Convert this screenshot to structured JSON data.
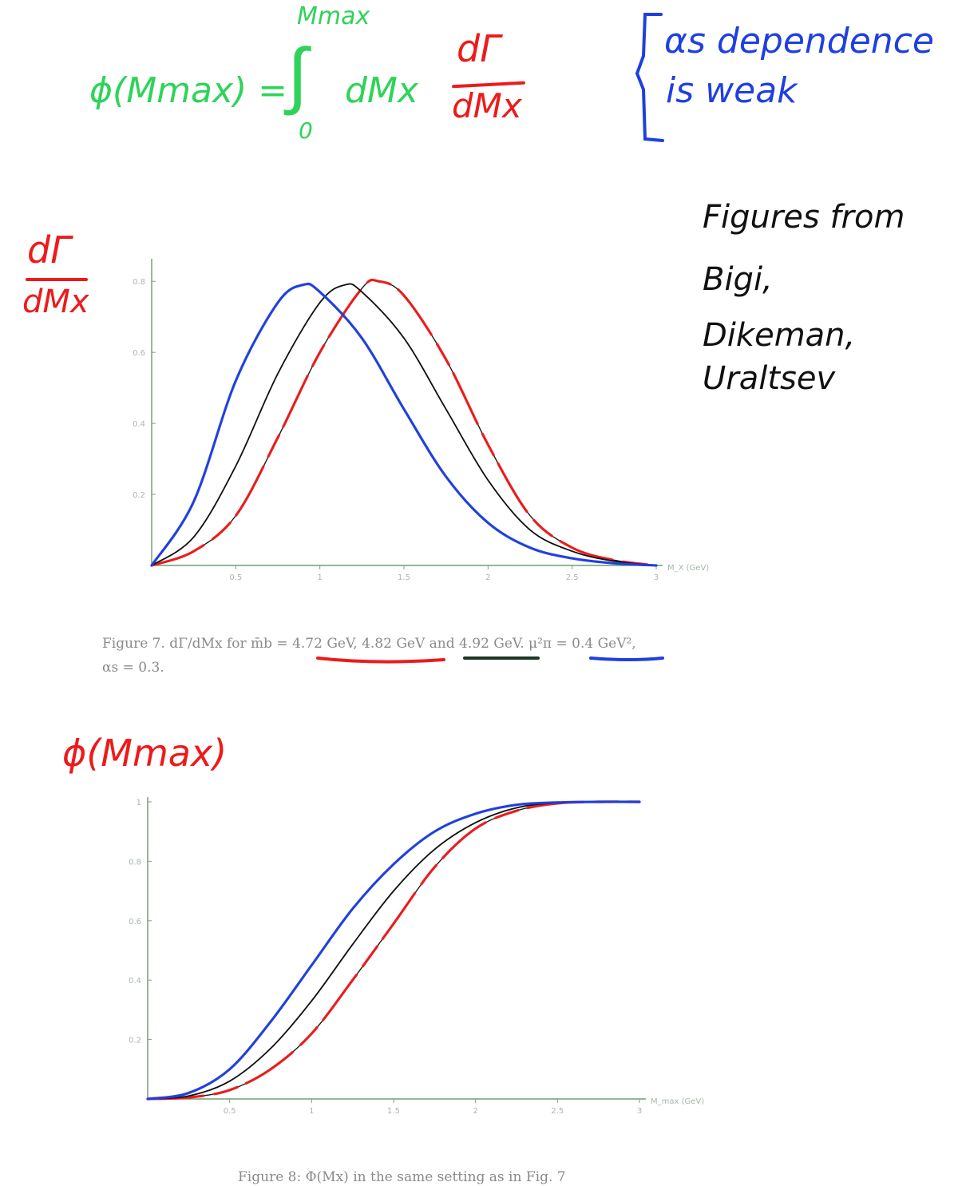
{
  "annotations": {
    "formula_lhs": "ϕ(Mmax) =",
    "formula_upper": "Mmax",
    "formula_integral": "∫",
    "formula_lower": "0",
    "formula_dmx": "dMx",
    "fraction_numerator": "dΓ",
    "fraction_denominator": "dMx",
    "alpha_note_line1": "αs dependence",
    "alpha_note_line2": "is weak",
    "fig1_ylabel_num": "dΓ",
    "fig1_ylabel_den": "dMx",
    "source_line1": "Figures from",
    "source_line2": "Bigi,",
    "source_line3": "Dikeman,",
    "source_line4": "Uraltsev",
    "fig2_ylabel": "ϕ(Mmax)",
    "colors": {
      "green": "#2fd35a",
      "red": "#ee1a1a",
      "blue": "#1f3fe0",
      "black": "#111111"
    }
  },
  "captions": {
    "fig7_line1": "Figure 7.   dΓ/dMx for m̄b = 4.72 GeV, 4.82 GeV and 4.92 GeV. μ²π = 0.4 GeV²,",
    "fig7_line2": "αs = 0.3.",
    "fig8": "Figure 8:  Φ(Mx) in the same setting as in Fig. 7"
  },
  "chart_data": [
    {
      "type": "line",
      "title": "",
      "xlabel": "M_X (GeV)",
      "ylabel": "dΓ/dMx",
      "xlim": [
        0,
        3
      ],
      "ylim": [
        0,
        0.85
      ],
      "x_ticks": [
        "0.5",
        "1",
        "1.5",
        "2",
        "2.5",
        "3"
      ],
      "y_ticks": [
        "0.2",
        "0.4",
        "0.6",
        "0.8"
      ],
      "grid": false,
      "series": [
        {
          "name": "4.72 GeV",
          "color": "#ee1a1a",
          "x": [
            0,
            0.25,
            0.5,
            0.75,
            1.0,
            1.25,
            1.35,
            1.5,
            1.75,
            2.0,
            2.25,
            2.5,
            2.75,
            3.0
          ],
          "values": [
            0,
            0.04,
            0.14,
            0.36,
            0.6,
            0.78,
            0.8,
            0.76,
            0.58,
            0.34,
            0.14,
            0.05,
            0.015,
            0.0
          ]
        },
        {
          "name": "4.82 GeV",
          "color": "#111111",
          "x": [
            0,
            0.25,
            0.5,
            0.75,
            1.0,
            1.15,
            1.25,
            1.5,
            1.75,
            2.0,
            2.25,
            2.5,
            2.75,
            3.0
          ],
          "values": [
            0,
            0.08,
            0.28,
            0.54,
            0.74,
            0.79,
            0.77,
            0.64,
            0.44,
            0.24,
            0.1,
            0.04,
            0.012,
            0.0
          ]
        },
        {
          "name": "4.92 GeV",
          "color": "#1f3fe0",
          "x": [
            0,
            0.25,
            0.5,
            0.75,
            0.9,
            1.0,
            1.25,
            1.5,
            1.75,
            2.0,
            2.25,
            2.5,
            2.75,
            3.0
          ],
          "values": [
            0,
            0.18,
            0.52,
            0.74,
            0.79,
            0.77,
            0.64,
            0.44,
            0.25,
            0.12,
            0.05,
            0.02,
            0.006,
            0.0
          ]
        }
      ]
    },
    {
      "type": "line",
      "title": "",
      "xlabel": "M_max (GeV)",
      "ylabel": "ϕ(Mmax)",
      "xlim": [
        0,
        3
      ],
      "ylim": [
        0,
        1.0
      ],
      "x_ticks": [
        "0.5",
        "1",
        "1.5",
        "2",
        "2.5",
        "3"
      ],
      "y_ticks": [
        "0.2",
        "0.4",
        "0.6",
        "0.8",
        "1"
      ],
      "grid": false,
      "series": [
        {
          "name": "4.72 GeV",
          "color": "#ee1a1a",
          "x": [
            0,
            0.25,
            0.5,
            0.75,
            1.0,
            1.25,
            1.5,
            1.75,
            2.0,
            2.25,
            2.5,
            2.75,
            3.0
          ],
          "values": [
            0,
            0.005,
            0.03,
            0.1,
            0.22,
            0.4,
            0.59,
            0.78,
            0.91,
            0.97,
            0.995,
            1.0,
            1.0
          ]
        },
        {
          "name": "4.82 GeV",
          "color": "#111111",
          "x": [
            0,
            0.25,
            0.5,
            0.75,
            1.0,
            1.25,
            1.5,
            1.75,
            2.0,
            2.25,
            2.5,
            2.75,
            3.0
          ],
          "values": [
            0,
            0.01,
            0.06,
            0.17,
            0.33,
            0.52,
            0.7,
            0.84,
            0.93,
            0.98,
            0.997,
            1.0,
            1.0
          ]
        },
        {
          "name": "4.92 GeV",
          "color": "#1f3fe0",
          "x": [
            0,
            0.25,
            0.5,
            0.75,
            1.0,
            1.25,
            1.5,
            1.75,
            2.0,
            2.25,
            2.5,
            2.75,
            3.0
          ],
          "values": [
            0,
            0.02,
            0.1,
            0.26,
            0.45,
            0.64,
            0.79,
            0.9,
            0.96,
            0.99,
            0.998,
            1.0,
            1.0
          ]
        }
      ]
    }
  ]
}
